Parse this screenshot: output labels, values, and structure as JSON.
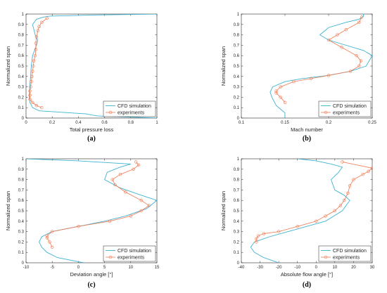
{
  "colors": {
    "cfd": "#3fb3d1",
    "exp": "#f07850",
    "axis": "#262626"
  },
  "chart_data": [
    {
      "type": "line",
      "panel_label": "(a)",
      "xlabel": "Total pressure loss",
      "ylabel": "Normalized span",
      "xlim": [
        0,
        1
      ],
      "ylim": [
        0,
        1
      ],
      "xticks": [
        "0",
        "0.2",
        "0.4",
        "0.6",
        "0.8",
        "1"
      ],
      "yticks": [
        "0",
        "0.1",
        "0.2",
        "0.3",
        "0.4",
        "0.5",
        "0.6",
        "0.7",
        "0.8",
        "0.9",
        "1"
      ],
      "legend": {
        "position": "bottom-right",
        "entries": [
          "CFD simulation",
          "experiments"
        ]
      },
      "series": [
        {
          "name": "CFD simulation",
          "marker": "none",
          "x": [
            1.0,
            0.55,
            0.5,
            0.46,
            0.1,
            0.05,
            0.03,
            0.025,
            0.028,
            0.035,
            0.04,
            0.05,
            0.08,
            0.09,
            0.07,
            0.06,
            0.05,
            0.08,
            0.13,
            0.18,
            0.5,
            1.0
          ],
          "y": [
            0.0,
            0.02,
            0.03,
            0.04,
            0.07,
            0.1,
            0.15,
            0.2,
            0.3,
            0.4,
            0.5,
            0.6,
            0.7,
            0.75,
            0.8,
            0.85,
            0.9,
            0.95,
            0.97,
            0.98,
            0.99,
            1.0
          ]
        },
        {
          "name": "experiments",
          "marker": "circle",
          "x": [
            0.12,
            0.08,
            0.05,
            0.03,
            0.03,
            0.03,
            0.035,
            0.04,
            0.045,
            0.05,
            0.055,
            0.06,
            0.07,
            0.075,
            0.075,
            0.08,
            0.09,
            0.1,
            0.12,
            0.16
          ],
          "y": [
            0.1,
            0.12,
            0.15,
            0.18,
            0.22,
            0.26,
            0.3,
            0.35,
            0.4,
            0.45,
            0.5,
            0.55,
            0.6,
            0.66,
            0.72,
            0.78,
            0.84,
            0.88,
            0.92,
            0.96
          ]
        }
      ]
    },
    {
      "type": "line",
      "panel_label": "(b)",
      "xlabel": "Mach number",
      "ylabel": "Normalized span",
      "xlim": [
        0.1,
        0.25
      ],
      "ylim": [
        0,
        1
      ],
      "xticks": [
        "0.1",
        "0.15",
        "0.2",
        "0.25"
      ],
      "yticks": [
        "0",
        "0.1",
        "0.2",
        "0.3",
        "0.4",
        "0.5",
        "0.6",
        "0.7",
        "0.8",
        "0.9",
        "1"
      ],
      "legend": {
        "position": "bottom-right",
        "entries": [
          "CFD simulation",
          "experiments"
        ]
      },
      "series": [
        {
          "name": "CFD simulation",
          "marker": "none",
          "x": [
            0.15,
            0.15,
            0.14,
            0.135,
            0.133,
            0.136,
            0.15,
            0.17,
            0.2,
            0.225,
            0.243,
            0.25,
            0.24,
            0.2,
            0.19,
            0.2,
            0.22,
            0.235,
            0.24,
            0.24
          ],
          "y": [
            0.0,
            0.05,
            0.12,
            0.2,
            0.25,
            0.3,
            0.35,
            0.38,
            0.41,
            0.45,
            0.5,
            0.6,
            0.65,
            0.75,
            0.8,
            0.87,
            0.92,
            0.95,
            0.98,
            1.0
          ]
        },
        {
          "name": "experiments",
          "marker": "circle",
          "x": [
            0.15,
            0.145,
            0.14,
            0.14,
            0.145,
            0.16,
            0.18,
            0.2,
            0.225,
            0.235,
            0.237,
            0.232,
            0.215,
            0.2,
            0.21,
            0.22,
            0.235,
            0.238
          ],
          "y": [
            0.15,
            0.2,
            0.24,
            0.26,
            0.3,
            0.35,
            0.38,
            0.41,
            0.45,
            0.5,
            0.55,
            0.6,
            0.68,
            0.75,
            0.8,
            0.85,
            0.92,
            0.97
          ]
        }
      ]
    },
    {
      "type": "line",
      "panel_label": "(c)",
      "xlabel": "Deviation angle [°]",
      "ylabel": "Normalized span",
      "xlim": [
        -10,
        15
      ],
      "ylim": [
        0,
        1
      ],
      "xticks": [
        "-10",
        "-5",
        "0",
        "5",
        "10",
        "15"
      ],
      "yticks": [
        "0",
        "0.1",
        "0.2",
        "0.3",
        "0.4",
        "0.5",
        "0.6",
        "0.7",
        "0.8",
        "0.9",
        "1"
      ],
      "legend": {
        "position": "bottom-right",
        "entries": [
          "CFD simulation",
          "experiments"
        ]
      },
      "series": [
        {
          "name": "CFD simulation",
          "marker": "none",
          "x": [
            1.0,
            -4.0,
            -6.0,
            -7.0,
            -7.5,
            -7.0,
            -5.0,
            0.0,
            5.0,
            9.0,
            13.0,
            15.0,
            12.0,
            8.0,
            5.0,
            5.5,
            8.0,
            10.0,
            0.0,
            -10.0
          ],
          "y": [
            0.0,
            0.05,
            0.1,
            0.15,
            0.2,
            0.25,
            0.3,
            0.35,
            0.4,
            0.45,
            0.52,
            0.6,
            0.65,
            0.72,
            0.8,
            0.87,
            0.92,
            0.95,
            0.98,
            1.0
          ]
        },
        {
          "name": "experiments",
          "marker": "circle",
          "x": [
            -5.0,
            -5.5,
            -6.0,
            -6.0,
            -5.0,
            0.0,
            6.0,
            10.0,
            12.0,
            13.5,
            12.0,
            9.0,
            7.0,
            6.5,
            8.0,
            10.5,
            11.5,
            11.0
          ],
          "y": [
            0.15,
            0.2,
            0.24,
            0.26,
            0.3,
            0.35,
            0.4,
            0.45,
            0.5,
            0.55,
            0.6,
            0.68,
            0.75,
            0.8,
            0.85,
            0.9,
            0.94,
            0.97
          ]
        }
      ]
    },
    {
      "type": "line",
      "panel_label": "(d)",
      "xlabel": "Absolute flow angle [°]",
      "ylabel": "Normalized span",
      "xlim": [
        -40,
        30
      ],
      "ylim": [
        0,
        1
      ],
      "xticks": [
        "-40",
        "-30",
        "-20",
        "-10",
        "0",
        "10",
        "20",
        "30"
      ],
      "yticks": [
        "0",
        "0.1",
        "0.2",
        "0.3",
        "0.4",
        "0.5",
        "0.6",
        "0.7",
        "0.8",
        "0.9",
        "1"
      ],
      "legend": {
        "position": "bottom-right",
        "entries": [
          "CFD simulation",
          "experiments"
        ]
      },
      "series": [
        {
          "name": "CFD simulation",
          "marker": "none",
          "x": [
            -20.0,
            -28.0,
            -33.0,
            -35.0,
            -33.0,
            -25.0,
            -15.0,
            -5.0,
            5.0,
            14.0,
            18.0,
            15.0,
            10.0,
            8.0,
            12.0,
            14.0,
            8.0,
            0.0,
            -10.0
          ],
          "y": [
            0.0,
            0.05,
            0.1,
            0.15,
            0.2,
            0.25,
            0.3,
            0.35,
            0.4,
            0.5,
            0.6,
            0.65,
            0.7,
            0.8,
            0.87,
            0.92,
            0.95,
            0.98,
            1.0
          ]
        },
        {
          "name": "experiments",
          "marker": "circle",
          "x": [
            -32.0,
            -32.0,
            -31.0,
            -28.0,
            -20.0,
            -10.0,
            0.0,
            5.0,
            10.0,
            13.0,
            15.0,
            17.0,
            18.0,
            20.0,
            25.0,
            28.0,
            30.0,
            14.0
          ],
          "y": [
            0.2,
            0.23,
            0.26,
            0.28,
            0.3,
            0.35,
            0.4,
            0.45,
            0.5,
            0.55,
            0.6,
            0.67,
            0.74,
            0.8,
            0.85,
            0.88,
            0.91,
            0.97
          ]
        }
      ]
    }
  ]
}
